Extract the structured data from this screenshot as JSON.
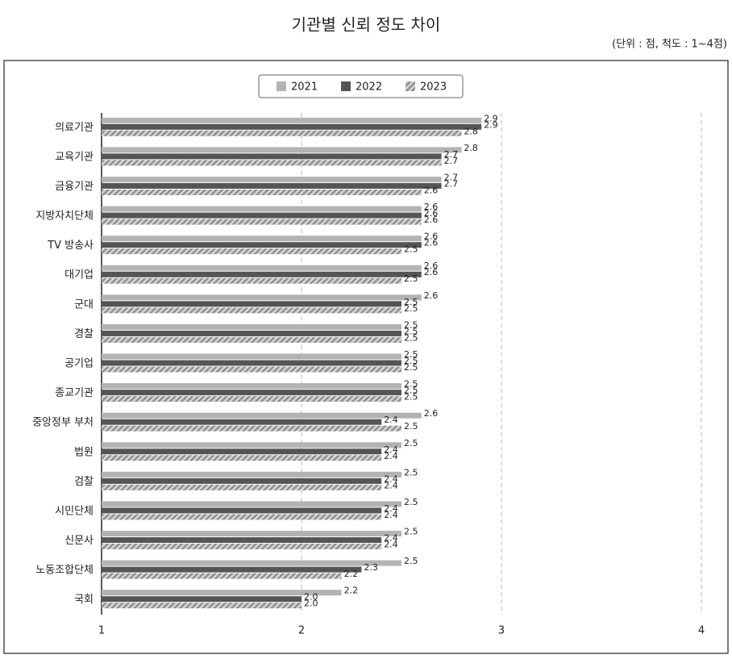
{
  "chart_data": {
    "type": "hbar",
    "title": "기관별 신뢰 정도 차이",
    "subtitle": "(단위 : 점, 척도 : 1~4점)",
    "categories": [
      "의료기관",
      "교육기관",
      "금융기관",
      "지방자치단체",
      "TV 방송사",
      "대기업",
      "군대",
      "경찰",
      "공기업",
      "종교기관",
      "중앙정부 부처",
      "법원",
      "검찰",
      "시민단체",
      "신문사",
      "노동조합단체",
      "국회"
    ],
    "series": [
      {
        "name": "2021",
        "color": "#b3b3b3",
        "values": [
          2.9,
          2.8,
          2.7,
          2.6,
          2.6,
          2.6,
          2.6,
          2.5,
          2.5,
          2.5,
          2.6,
          2.5,
          2.5,
          2.5,
          2.5,
          2.5,
          2.2
        ],
        "value_labels": [
          "2.9",
          "2.8",
          "2.7",
          "2.6",
          "2.6",
          "2.6",
          "2.6",
          "2.5",
          "2.5",
          "2.5",
          "2.6",
          "2.5",
          "2.5",
          "2.5",
          "2.5",
          "2.5",
          "2.2"
        ]
      },
      {
        "name": "2022",
        "color": "#555555",
        "values": [
          2.9,
          2.7,
          2.7,
          2.6,
          2.6,
          2.6,
          2.5,
          2.5,
          2.5,
          2.5,
          2.4,
          2.4,
          2.4,
          2.4,
          2.4,
          2.3,
          2.0
        ],
        "value_labels": [
          "2.9",
          "2.7",
          "2.7",
          "2.6",
          "2.6",
          "2.6",
          "2.5",
          "2.5",
          "2.5",
          "2.5",
          "2.4",
          "2.4",
          "2.4",
          "2.4",
          "2.4",
          "2.3",
          "2.0"
        ]
      },
      {
        "name": "2023",
        "color": "#8f8f8f",
        "pattern": "hatch",
        "values": [
          2.8,
          2.7,
          2.6,
          2.6,
          2.5,
          2.5,
          2.5,
          2.5,
          2.5,
          2.5,
          2.5,
          2.4,
          2.4,
          2.4,
          2.4,
          2.2,
          2.0
        ],
        "value_labels": [
          "2.8",
          "2.7",
          "2.6",
          "2.6",
          "2.5",
          "2.5",
          "2.5",
          "2.5",
          "2.5",
          "2.5",
          "2.5",
          "2.4",
          "2.4",
          "2.4",
          "2.4",
          "2.2",
          "2.0"
        ]
      }
    ],
    "xlim": [
      1,
      4
    ],
    "xticks": [
      1,
      2,
      3,
      4
    ],
    "grid": true
  }
}
